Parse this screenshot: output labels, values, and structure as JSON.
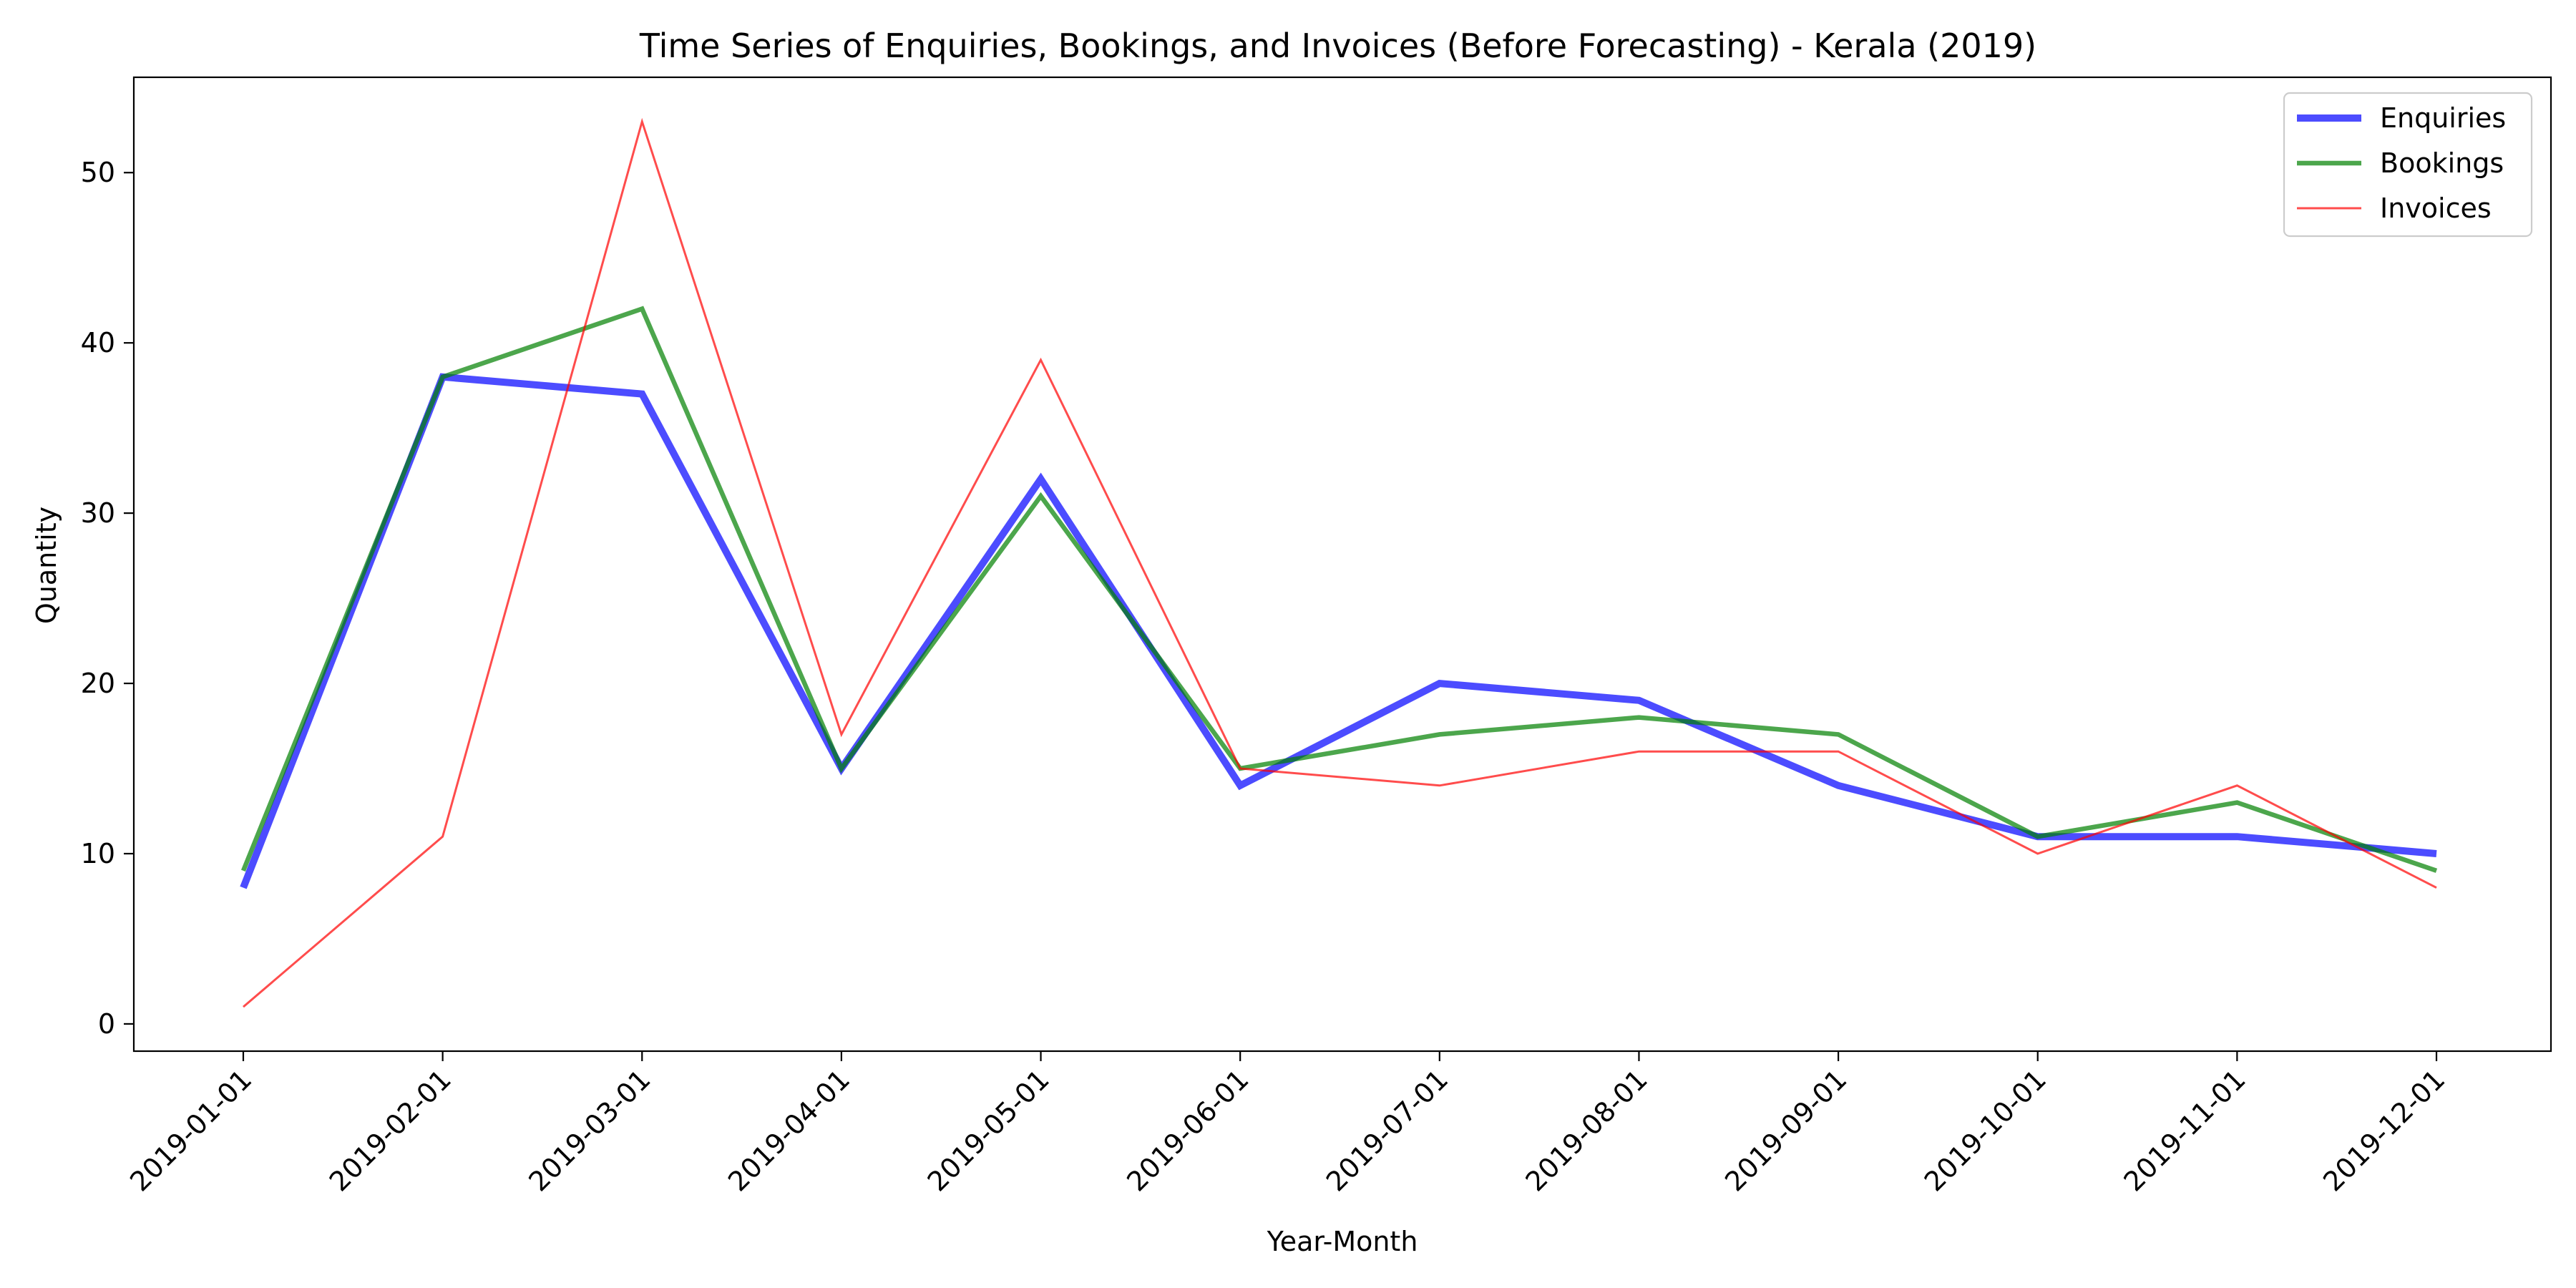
{
  "chart_data": {
    "type": "line",
    "title": "Time Series of Enquiries, Bookings, and Invoices (Before Forecasting) - Kerala (2019)",
    "xlabel": "Year-Month",
    "ylabel": "Quantity",
    "categories": [
      "2019-01-01",
      "2019-02-01",
      "2019-03-01",
      "2019-04-01",
      "2019-05-01",
      "2019-06-01",
      "2019-07-01",
      "2019-08-01",
      "2019-09-01",
      "2019-10-01",
      "2019-11-01",
      "2019-12-01"
    ],
    "ylim": [
      -1.6,
      55.6
    ],
    "yticks": [
      0,
      10,
      20,
      30,
      40,
      50
    ],
    "grid": false,
    "legend_position": "top-right",
    "series": [
      {
        "name": "Enquiries",
        "color": "#0000ff",
        "values": [
          8,
          38,
          37,
          15,
          32,
          14,
          20,
          19,
          14,
          11,
          11,
          10
        ]
      },
      {
        "name": "Bookings",
        "color": "#008000",
        "values": [
          9,
          38,
          42,
          15,
          31,
          15,
          17,
          18,
          17,
          11,
          13,
          9
        ]
      },
      {
        "name": "Invoices",
        "color": "#ff0000",
        "values": [
          1,
          11,
          53,
          17,
          39,
          15,
          14,
          16,
          16,
          10,
          14,
          8
        ]
      }
    ]
  }
}
